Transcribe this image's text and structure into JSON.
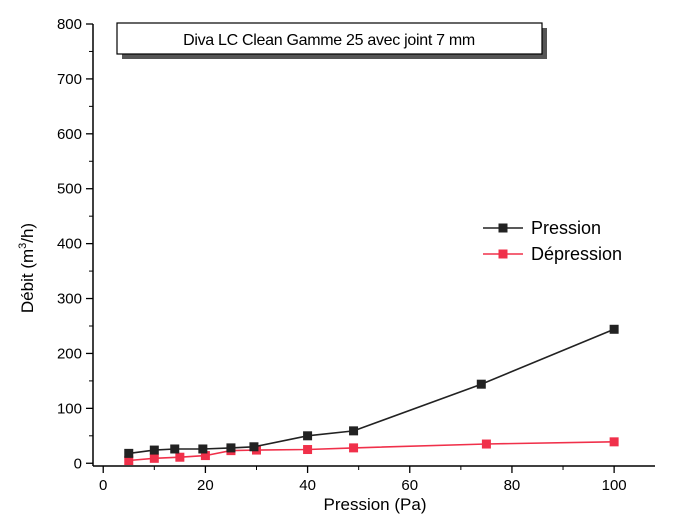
{
  "chart_data": {
    "type": "line",
    "title": "Diva LC Clean Gamme 25 avec joint 7 mm",
    "xlabel": "Pression (Pa)",
    "ylabel_main": "Débit (m",
    "ylabel_sup": "3",
    "ylabel_tail": "/h)",
    "xlim": [
      -2,
      108
    ],
    "ylim": [
      -5,
      800
    ],
    "xticks": [
      0,
      20,
      40,
      60,
      80,
      100
    ],
    "yticks": [
      0,
      100,
      200,
      300,
      400,
      500,
      600,
      700,
      800
    ],
    "grid": false,
    "legend_position": "right",
    "series": [
      {
        "name": "Pression",
        "color": "#222222",
        "x": [
          5,
          10,
          14,
          19.5,
          25,
          29.5,
          40,
          49,
          74,
          100
        ],
        "y": [
          18,
          24,
          26,
          26,
          28,
          30,
          50,
          59,
          144,
          244
        ]
      },
      {
        "name": "Dépression",
        "color": "#f0304a",
        "x": [
          5,
          10,
          15,
          20,
          25,
          30,
          40,
          49,
          75,
          100
        ],
        "y": [
          5,
          9,
          11,
          14,
          23,
          24,
          25,
          28,
          35,
          39
        ]
      }
    ]
  }
}
